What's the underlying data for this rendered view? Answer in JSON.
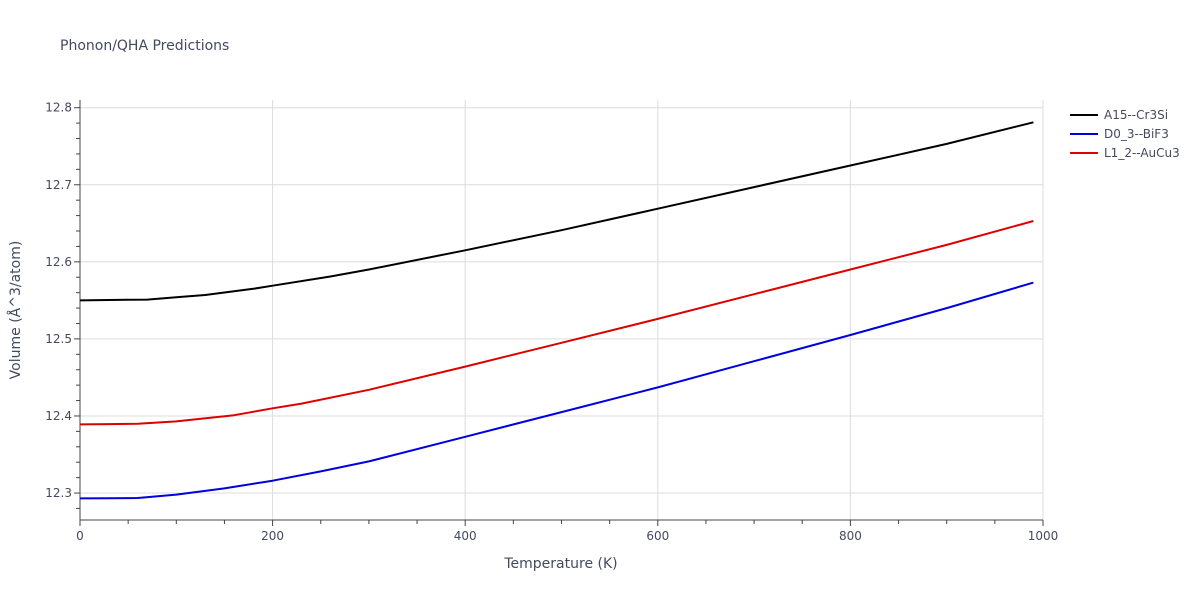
{
  "chart_data": {
    "type": "line",
    "title": "Phonon/QHA Predictions",
    "xlabel": "Temperature (K)",
    "ylabel": "Volume (Å^3/atom)",
    "xlim": [
      0,
      1000
    ],
    "ylim": [
      12.265,
      12.81
    ],
    "x_ticks": [
      0,
      200,
      400,
      600,
      800,
      1000
    ],
    "x_tick_labels": [
      "0",
      "200",
      "400",
      "600",
      "800",
      "1000"
    ],
    "y_ticks": [
      12.3,
      12.4,
      12.5,
      12.6,
      12.7,
      12.8
    ],
    "y_tick_labels": [
      "12.3",
      "12.4",
      "12.5",
      "12.6",
      "12.7",
      "12.8"
    ],
    "grid": true,
    "legend_position": "top-right",
    "series": [
      {
        "name": "A15--Cr3Si",
        "color": "#000000",
        "x": [
          0,
          30,
          70,
          100,
          130,
          180,
          200,
          260,
          300,
          400,
          500,
          600,
          700,
          800,
          900,
          990
        ],
        "y": [
          12.55,
          12.5505,
          12.551,
          12.554,
          12.557,
          12.565,
          12.569,
          12.581,
          12.59,
          12.615,
          12.641,
          12.669,
          12.697,
          12.725,
          12.753,
          12.781
        ]
      },
      {
        "name": "D0_3--BiF3",
        "color": "#0000dd",
        "x": [
          0,
          30,
          60,
          100,
          150,
          200,
          250,
          300,
          400,
          500,
          600,
          700,
          800,
          900,
          990
        ],
        "y": [
          12.293,
          12.2932,
          12.2935,
          12.298,
          12.306,
          12.316,
          12.328,
          12.341,
          12.373,
          12.405,
          12.437,
          12.471,
          12.505,
          12.54,
          12.573
        ]
      },
      {
        "name": "L1_2--AuCu3",
        "color": "#dd0000",
        "x": [
          0,
          30,
          60,
          100,
          160,
          200,
          230,
          300,
          400,
          500,
          600,
          700,
          800,
          900,
          990
        ],
        "y": [
          12.389,
          12.3895,
          12.39,
          12.393,
          12.401,
          12.41,
          12.416,
          12.434,
          12.464,
          12.495,
          12.526,
          12.558,
          12.59,
          12.622,
          12.653
        ]
      }
    ]
  }
}
